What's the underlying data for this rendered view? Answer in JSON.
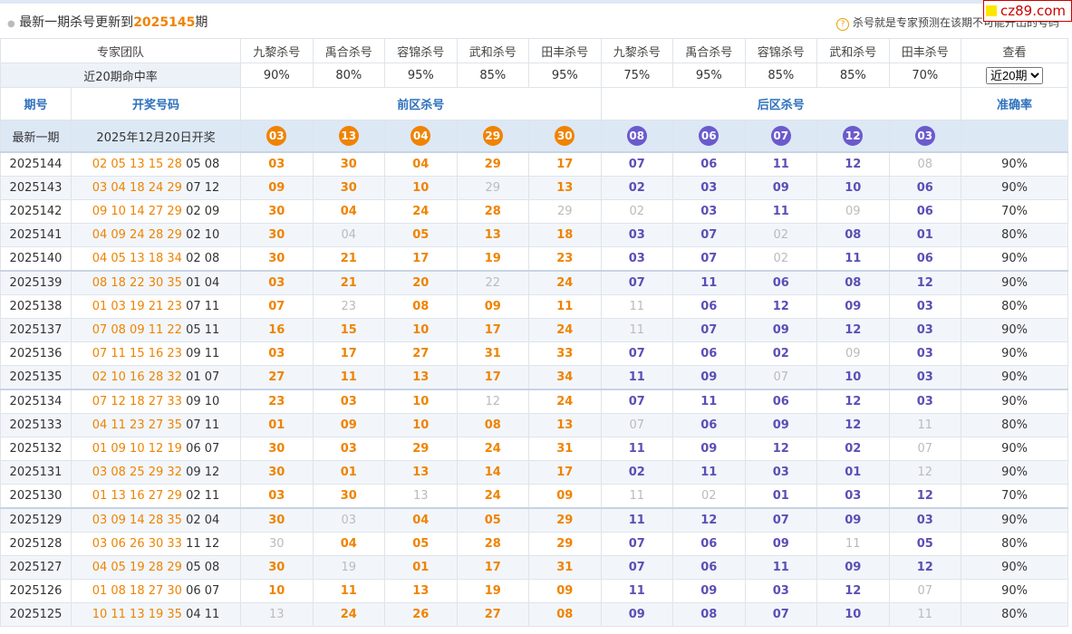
{
  "header": {
    "prefix": "最新一期杀号更新到",
    "issue": "2025145",
    "suffix": "期",
    "note": "杀号就是专家预测在该期不可能开出的号码",
    "logo": "cz89.com"
  },
  "table": {
    "team_row": [
      "专家团队",
      "九黎杀号",
      "禹合杀号",
      "容锦杀号",
      "武和杀号",
      "田丰杀号",
      "九黎杀号",
      "禹合杀号",
      "容锦杀号",
      "武和杀号",
      "田丰杀号",
      "查看"
    ],
    "rate_row": {
      "label": "近20期命中率",
      "rates": [
        "90%",
        "80%",
        "95%",
        "85%",
        "95%",
        "75%",
        "95%",
        "85%",
        "85%",
        "70%"
      ],
      "select": "近20期"
    },
    "columns": [
      "期号",
      "开奖号码",
      "前区杀号",
      "后区杀号",
      "准确率"
    ],
    "latest": {
      "label": "最新一期",
      "draw": "2025年12月20日开奖",
      "front": [
        "03",
        "13",
        "04",
        "29",
        "30"
      ],
      "back": [
        "08",
        "06",
        "07",
        "12",
        "03"
      ]
    },
    "rows": [
      {
        "period": "2025144",
        "front": "02 05 13 15 28",
        "back": "05 08",
        "kills": [
          "03",
          "30",
          "04",
          "29",
          "17",
          "07",
          "06",
          "11",
          "12",
          "08"
        ],
        "accuracy": "90%"
      },
      {
        "period": "2025143",
        "front": "03 04 18 24 29",
        "back": "07 12",
        "kills": [
          "09",
          "30",
          "10",
          "29",
          "13",
          "02",
          "03",
          "09",
          "10",
          "06"
        ],
        "accuracy": "90%"
      },
      {
        "period": "2025142",
        "front": "09 10 14 27 29",
        "back": "02 09",
        "kills": [
          "30",
          "04",
          "24",
          "28",
          "29",
          "02",
          "03",
          "11",
          "09",
          "06"
        ],
        "accuracy": "70%"
      },
      {
        "period": "2025141",
        "front": "04 09 24 28 29",
        "back": "02 10",
        "kills": [
          "30",
          "04",
          "05",
          "13",
          "18",
          "03",
          "07",
          "02",
          "08",
          "01"
        ],
        "accuracy": "80%"
      },
      {
        "period": "2025140",
        "front": "04 05 13 18 34",
        "back": "02 08",
        "kills": [
          "30",
          "21",
          "17",
          "19",
          "23",
          "03",
          "07",
          "02",
          "11",
          "06"
        ],
        "accuracy": "90%"
      },
      {
        "period": "2025139",
        "front": "08 18 22 30 35",
        "back": "01 04",
        "kills": [
          "03",
          "21",
          "20",
          "22",
          "24",
          "07",
          "11",
          "06",
          "08",
          "12"
        ],
        "accuracy": "90%"
      },
      {
        "period": "2025138",
        "front": "01 03 19 21 23",
        "back": "07 11",
        "kills": [
          "07",
          "23",
          "08",
          "09",
          "11",
          "11",
          "06",
          "12",
          "09",
          "03"
        ],
        "accuracy": "80%"
      },
      {
        "period": "2025137",
        "front": "07 08 09 11 22",
        "back": "05 11",
        "kills": [
          "16",
          "15",
          "10",
          "17",
          "24",
          "11",
          "07",
          "09",
          "12",
          "03"
        ],
        "accuracy": "90%"
      },
      {
        "period": "2025136",
        "front": "07 11 15 16 23",
        "back": "09 11",
        "kills": [
          "03",
          "17",
          "27",
          "31",
          "33",
          "07",
          "06",
          "02",
          "09",
          "03"
        ],
        "accuracy": "90%"
      },
      {
        "period": "2025135",
        "front": "02 10 16 28 32",
        "back": "01 07",
        "kills": [
          "27",
          "11",
          "13",
          "17",
          "34",
          "11",
          "09",
          "07",
          "10",
          "03"
        ],
        "accuracy": "90%"
      },
      {
        "period": "2025134",
        "front": "07 12 18 27 33",
        "back": "09 10",
        "kills": [
          "23",
          "03",
          "10",
          "12",
          "24",
          "07",
          "11",
          "06",
          "12",
          "03"
        ],
        "accuracy": "90%"
      },
      {
        "period": "2025133",
        "front": "04 11 23 27 35",
        "back": "07 11",
        "kills": [
          "01",
          "09",
          "10",
          "08",
          "13",
          "07",
          "06",
          "09",
          "12",
          "11"
        ],
        "accuracy": "80%"
      },
      {
        "period": "2025132",
        "front": "01 09 10 12 19",
        "back": "06 07",
        "kills": [
          "30",
          "03",
          "29",
          "24",
          "31",
          "11",
          "09",
          "12",
          "02",
          "07"
        ],
        "accuracy": "90%"
      },
      {
        "period": "2025131",
        "front": "03 08 25 29 32",
        "back": "09 12",
        "kills": [
          "30",
          "01",
          "13",
          "14",
          "17",
          "02",
          "11",
          "03",
          "01",
          "12"
        ],
        "accuracy": "90%"
      },
      {
        "period": "2025130",
        "front": "01 13 16 27 29",
        "back": "02 11",
        "kills": [
          "03",
          "30",
          "13",
          "24",
          "09",
          "11",
          "02",
          "01",
          "03",
          "12"
        ],
        "accuracy": "70%"
      },
      {
        "period": "2025129",
        "front": "03 09 14 28 35",
        "back": "02 04",
        "kills": [
          "30",
          "03",
          "04",
          "05",
          "29",
          "11",
          "12",
          "07",
          "09",
          "03"
        ],
        "accuracy": "90%"
      },
      {
        "period": "2025128",
        "front": "03 06 26 30 33",
        "back": "11 12",
        "kills": [
          "30",
          "04",
          "05",
          "28",
          "29",
          "07",
          "06",
          "09",
          "11",
          "05"
        ],
        "accuracy": "80%"
      },
      {
        "period": "2025127",
        "front": "04 05 19 28 29",
        "back": "05 08",
        "kills": [
          "30",
          "19",
          "01",
          "17",
          "31",
          "07",
          "06",
          "11",
          "09",
          "12"
        ],
        "accuracy": "90%"
      },
      {
        "period": "2025126",
        "front": "01 08 18 27 30",
        "back": "06 07",
        "kills": [
          "10",
          "11",
          "13",
          "19",
          "09",
          "11",
          "09",
          "03",
          "12",
          "07"
        ],
        "accuracy": "90%"
      },
      {
        "period": "2025125",
        "front": "10 11 13 19 35",
        "back": "04 11",
        "kills": [
          "13",
          "24",
          "26",
          "27",
          "08",
          "09",
          "08",
          "07",
          "10",
          "11"
        ],
        "accuracy": "80%"
      }
    ]
  }
}
